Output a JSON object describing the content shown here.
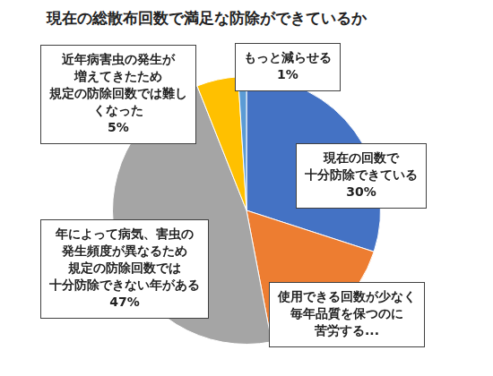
{
  "chart_data": {
    "type": "pie",
    "title": "現在の総散布回数で満足な防除ができているか",
    "categories": [
      "現在の回数で\n十分防除できている",
      "使用できる回数が少なく\n毎年品質を保つのに\n苦労する...",
      "年によって病気、害虫の\n発生頻度が異なるため\n規定の防除回数では\n十分防除できない年がある",
      "近年病害虫の発生が\n増えてきたため\n規定の防除回数では難し\nくなった",
      "もっと減らせる"
    ],
    "values": [
      30,
      17,
      47,
      5,
      1
    ],
    "value_labels": [
      "30%",
      null,
      "47%",
      "5%",
      "1%"
    ],
    "colors": [
      "#4472c4",
      "#ed7d31",
      "#a5a5a5",
      "#ffc000",
      "#5b9bd5"
    ],
    "data_labels": true
  }
}
